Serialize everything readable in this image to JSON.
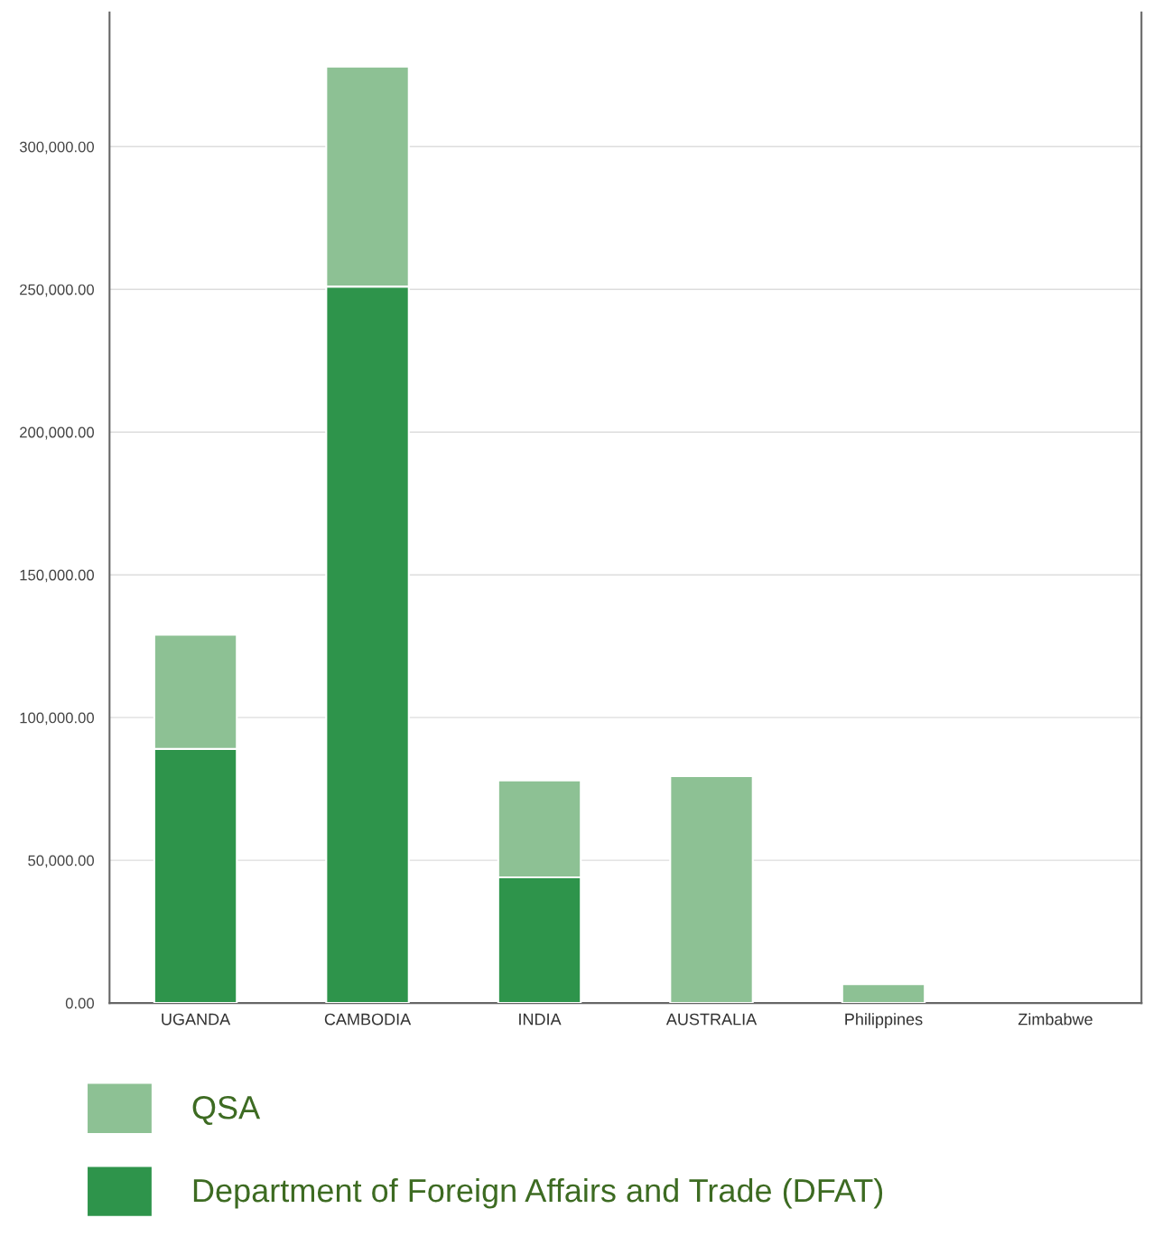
{
  "chart_data": {
    "type": "bar",
    "stacked": true,
    "categories": [
      "UGANDA",
      "CAMBODIA",
      "INDIA",
      "AUSTRALIA",
      "Philippines",
      "Zimbabwe"
    ],
    "series": [
      {
        "name": "Department of Foreign Affairs and Trade (DFAT)",
        "color": "#2e944b",
        "values": [
          89000,
          251000,
          44000,
          0,
          0,
          0
        ]
      },
      {
        "name": "QSA",
        "color": "#8dc194",
        "values": [
          40000,
          77000,
          34000,
          79500,
          6600,
          0
        ]
      }
    ],
    "ylim": [
      0,
      347000
    ],
    "yticks": [
      {
        "value": 0,
        "label": "0.00"
      },
      {
        "value": 50000,
        "label": "50,000.00"
      },
      {
        "value": 100000,
        "label": "100,000.00"
      },
      {
        "value": 150000,
        "label": "150,000.00"
      },
      {
        "value": 200000,
        "label": "200,000.00"
      },
      {
        "value": 250000,
        "label": "250,000.00"
      },
      {
        "value": 300000,
        "label": "300,000.00"
      }
    ],
    "grid": "y",
    "legend": "bottom"
  }
}
